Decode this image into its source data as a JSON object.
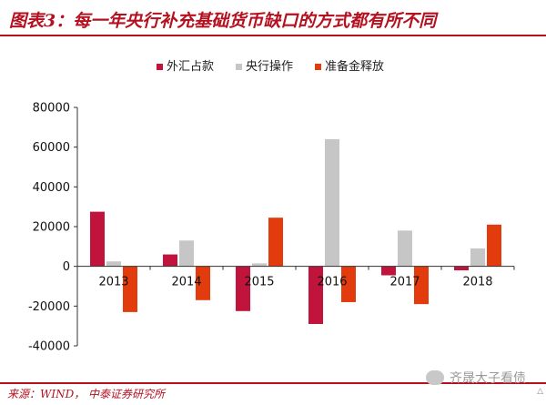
{
  "figure": {
    "title": "图表3：每一年央行补充基础货币缺口的方式都有所不同",
    "source": "来源：WIND， 中泰证券研究所",
    "watermark": "齐晟大子看债",
    "corner_mark": "△"
  },
  "colors": {
    "accent": "#b5101f",
    "series": [
      "#c0143c",
      "#c6c6c6",
      "#e23b0e"
    ]
  },
  "chart_data": {
    "type": "bar",
    "title": "",
    "xlabel": "",
    "ylabel": "",
    "categories": [
      "2013",
      "2014",
      "2015",
      "2016",
      "2017",
      "2018"
    ],
    "series": [
      {
        "name": "外汇占款",
        "values": [
          27500,
          6000,
          -22500,
          -29000,
          -4500,
          -2000
        ]
      },
      {
        "name": "央行操作",
        "values": [
          2500,
          13000,
          1500,
          64000,
          18000,
          9000
        ]
      },
      {
        "name": "准备金释放",
        "values": [
          -23000,
          -17000,
          24500,
          -18000,
          -19000,
          21000
        ]
      }
    ],
    "ylim": [
      -40000,
      80000
    ],
    "yticks": [
      -40000,
      -20000,
      0,
      20000,
      40000,
      60000,
      80000
    ],
    "ytick_labels": [
      "-40000",
      "-20000",
      "0",
      "20000",
      "40000",
      "60000",
      "80000"
    ],
    "grid": false,
    "legend_position": "top-center"
  }
}
